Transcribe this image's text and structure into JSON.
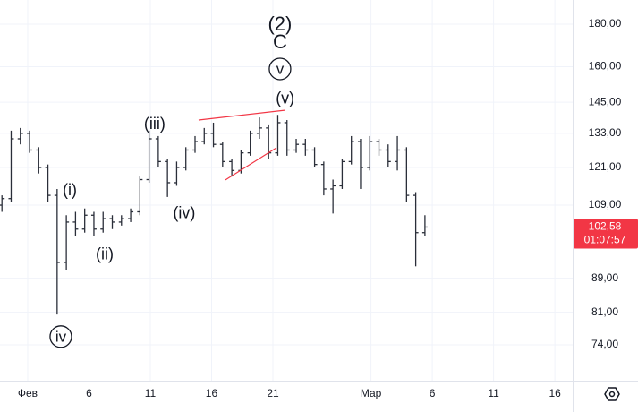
{
  "chart_data": {
    "type": "ohlc",
    "log_scale": true,
    "grid": true,
    "color": "#2a2e39",
    "xlim": [
      -2.26,
      44.45
    ],
    "ylim": [
      67,
      192.5
    ],
    "xticks": [
      {
        "value": 0,
        "label": "Фев"
      },
      {
        "value": 5,
        "label": "6"
      },
      {
        "value": 10,
        "label": "11"
      },
      {
        "value": 15,
        "label": "16"
      },
      {
        "value": 20,
        "label": "21"
      },
      {
        "value": 28,
        "label": "Мар"
      },
      {
        "value": 33,
        "label": "6"
      },
      {
        "value": 38,
        "label": "11"
      },
      {
        "value": 43,
        "label": "16"
      }
    ],
    "yticks": [
      {
        "value": 180,
        "label": "180,00"
      },
      {
        "value": 160,
        "label": "160,00"
      },
      {
        "value": 145,
        "label": "145,00"
      },
      {
        "value": 133,
        "label": "133,00"
      },
      {
        "value": 121,
        "label": "121,00"
      },
      {
        "value": 109,
        "label": "109,00"
      },
      {
        "value": 89,
        "label": "89,00"
      },
      {
        "value": 81,
        "label": "81,00"
      },
      {
        "value": 74,
        "label": "74,00"
      }
    ],
    "x": [
      -2.1,
      -1.35,
      -0.6,
      0.15,
      0.9,
      1.65,
      2.4,
      3.15,
      3.9,
      4.65,
      5.4,
      6.15,
      6.9,
      7.65,
      8.4,
      9.15,
      9.9,
      10.65,
      11.4,
      12.15,
      12.9,
      13.65,
      14.4,
      15.15,
      15.9,
      16.65,
      17.4,
      18.15,
      18.9,
      19.65,
      20.4,
      21.15,
      21.9,
      22.65,
      23.4,
      24.15,
      24.9,
      25.65,
      26.4,
      27.15,
      27.9,
      28.65,
      29.4,
      30.15,
      30.9,
      31.65,
      32.4
    ],
    "open": [
      109,
      111,
      131,
      133,
      127,
      121,
      112,
      93,
      104,
      102,
      106,
      102,
      105,
      104,
      105,
      107,
      117,
      131,
      123,
      116,
      121,
      127,
      130,
      133,
      129,
      123,
      120,
      126,
      133,
      135,
      126,
      137,
      127,
      129,
      127,
      122,
      114,
      115,
      123,
      130,
      121,
      130,
      127,
      123,
      127,
      112,
      101
    ],
    "high": [
      112,
      134,
      135,
      134,
      128,
      122,
      114,
      106,
      107,
      108,
      107,
      107,
      106,
      106,
      108,
      118,
      134,
      132,
      124,
      123,
      128,
      132,
      135,
      137,
      130,
      124,
      127,
      134,
      139,
      136,
      140,
      138,
      131,
      131,
      128,
      123,
      117,
      124,
      132,
      131,
      132,
      131,
      129,
      132,
      128,
      113,
      106
    ],
    "low": [
      107,
      110,
      129,
      126,
      119,
      110,
      80.5,
      91,
      100,
      101,
      100,
      101,
      102,
      103,
      104,
      106,
      116,
      121,
      111.5,
      115,
      120,
      126,
      129,
      128,
      121,
      118,
      119,
      125,
      131,
      124,
      125,
      125,
      126,
      125,
      121,
      112,
      106.5,
      114,
      122,
      114,
      120,
      125,
      121,
      120,
      110,
      92,
      100
    ],
    "close": [
      111,
      131,
      133,
      127,
      121,
      112,
      93,
      104,
      102,
      106,
      102,
      105,
      104,
      105,
      107,
      117,
      131,
      123,
      116,
      121,
      127,
      130,
      133,
      129,
      123,
      120,
      126,
      133,
      135,
      126,
      137,
      127,
      129,
      127,
      122,
      114,
      115,
      123,
      130,
      121,
      130,
      127,
      123,
      127,
      112,
      101,
      102.58
    ],
    "current_price": {
      "value": 102.58,
      "label": "102,58",
      "timer": "01:07:57",
      "color": "#f23645"
    },
    "trend_lines": [
      {
        "x": [
          13.94,
          20.95
        ],
        "y": [
          138,
          141.8
        ],
        "color": "#f23645"
      },
      {
        "x": [
          16.13,
          20.29
        ],
        "y": [
          116.9,
          127.8
        ],
        "color": "#f23645"
      }
    ],
    "annotations": [
      {
        "text": "(2)",
        "x": 20.58,
        "y": 180,
        "size": 22
      },
      {
        "text": "C",
        "x": 20.58,
        "y": 171.3,
        "size": 22
      },
      {
        "text": "v",
        "x": 20.58,
        "y": 159,
        "size": 17,
        "circled": true
      },
      {
        "text": "(v)",
        "x": 21.0,
        "y": 146.5,
        "size": 18
      },
      {
        "text": "(iii)",
        "x": 10.36,
        "y": 136.6,
        "size": 18
      },
      {
        "text": "(iv)",
        "x": 12.77,
        "y": 106.6,
        "size": 18
      },
      {
        "text": "(i)",
        "x": 3.43,
        "y": 113.7,
        "size": 18
      },
      {
        "text": "(ii)",
        "x": 6.28,
        "y": 95.1,
        "size": 18
      },
      {
        "text": "iv",
        "x": 2.7,
        "y": 75.7,
        "size": 17,
        "circled": true
      }
    ]
  }
}
